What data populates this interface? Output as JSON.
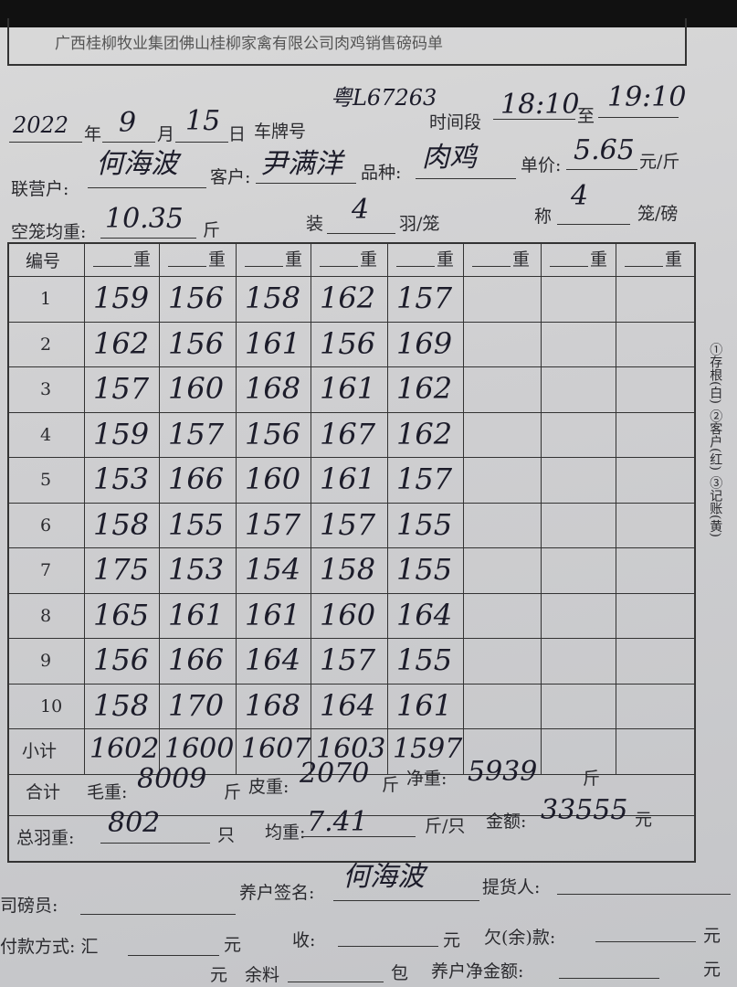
{
  "header": {
    "title": "广西桂柳牧业集团佛山桂柳家禽有限公司肉鸡销售磅码单"
  },
  "date": {
    "year": 2022,
    "year_unit": "年",
    "month": 9,
    "month_unit": "月",
    "day": 15,
    "day_unit": "日"
  },
  "plate": {
    "label": "车牌号",
    "value": "粤L67263"
  },
  "time": {
    "label": "时间段",
    "start": "18:10",
    "to": "至",
    "end": "19:10"
  },
  "partner": {
    "label": "联营户:",
    "value": "何海波"
  },
  "customer": {
    "label": "客户:",
    "value": "尹满洋"
  },
  "variety": {
    "label": "品种:",
    "value": "肉鸡"
  },
  "price": {
    "label": "单价:",
    "value": 5.65,
    "unit": "元/斤"
  },
  "cage_weight": {
    "label": "空笼均重:",
    "value": 10.35,
    "unit": "斤"
  },
  "per_cage": {
    "label": "装",
    "value": 4,
    "unit": "羽/笼"
  },
  "per_weigh": {
    "label": "称",
    "value": 4,
    "unit": "笼/磅"
  },
  "table": {
    "header": [
      "编号",
      "重",
      "重",
      "重",
      "重",
      "重",
      "重",
      "重",
      "重"
    ],
    "rows": [
      [
        1,
        159,
        156,
        158,
        162,
        157
      ],
      [
        2,
        162,
        156,
        161,
        156,
        169
      ],
      [
        3,
        157,
        160,
        168,
        161,
        162
      ],
      [
        4,
        159,
        157,
        156,
        167,
        162
      ],
      [
        5,
        153,
        166,
        160,
        161,
        157
      ],
      [
        6,
        158,
        155,
        157,
        157,
        155
      ],
      [
        7,
        175,
        153,
        154,
        158,
        155
      ],
      [
        8,
        165,
        161,
        161,
        160,
        164
      ],
      [
        9,
        156,
        166,
        164,
        157,
        155
      ],
      [
        10,
        158,
        170,
        168,
        164,
        161
      ]
    ],
    "subtotal": {
      "label": "小计",
      "values": [
        1602,
        1600,
        1607,
        1603,
        1597
      ]
    }
  },
  "total": {
    "label": "合计",
    "gross_label": "毛重:",
    "gross": 8009,
    "gross_unit": "斤",
    "tare_label": "皮重:",
    "tare": 2070,
    "tare_unit": "斤",
    "net_label": "净重:",
    "net": 5939,
    "net_unit": "斤"
  },
  "count": {
    "label": "总羽重:",
    "value": 802,
    "unit": "只",
    "avg_label": "均重:",
    "avg": 7.41,
    "avg_unit": "斤/只",
    "amount_label": "金额:",
    "amount": 33555,
    "amount_unit": "元"
  },
  "signatures": {
    "weigher": "司磅员:",
    "farmer": "养户签名:",
    "farmer_sig": "何海波",
    "pickup": "提货人:"
  },
  "payment": {
    "label": "付款方式: 汇",
    "unit1": "元",
    "receive": "收:",
    "unit2": "元",
    "owe": "欠(余)款:",
    "unit3": "元"
  },
  "bottom": {
    "unit1": "元",
    "feed": "余料",
    "feed_unit": "包",
    "net_amount": "养户净金额:",
    "unit2": "元"
  },
  "side_note": [
    "①存根(白)",
    "②客户(红)",
    "③记账(黄)"
  ]
}
